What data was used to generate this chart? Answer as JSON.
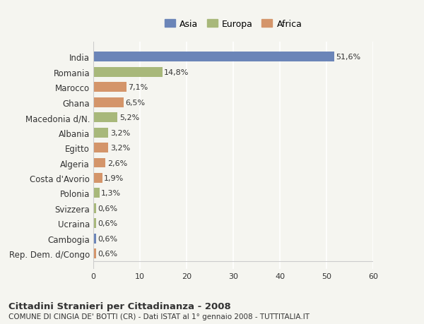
{
  "categories": [
    "Rep. Dem. d/Congo",
    "Cambogia",
    "Ucraina",
    "Svizzera",
    "Polonia",
    "Costa d'Avorio",
    "Algeria",
    "Egitto",
    "Albania",
    "Macedonia d/N.",
    "Ghana",
    "Marocco",
    "Romania",
    "India"
  ],
  "values": [
    0.6,
    0.6,
    0.6,
    0.6,
    1.3,
    1.9,
    2.6,
    3.2,
    3.2,
    5.2,
    6.5,
    7.1,
    14.8,
    51.6
  ],
  "labels": [
    "0,6%",
    "0,6%",
    "0,6%",
    "0,6%",
    "1,3%",
    "1,9%",
    "2,6%",
    "3,2%",
    "3,2%",
    "5,2%",
    "6,5%",
    "7,1%",
    "14,8%",
    "51,6%"
  ],
  "continents": [
    "Africa",
    "Asia",
    "Europa",
    "Europa",
    "Europa",
    "Africa",
    "Africa",
    "Africa",
    "Europa",
    "Europa",
    "Africa",
    "Africa",
    "Europa",
    "Asia"
  ],
  "colors": {
    "Asia": "#6b85b8",
    "Europa": "#a8b87a",
    "Africa": "#d4956a"
  },
  "legend_order": [
    "Asia",
    "Europa",
    "Africa"
  ],
  "xlim": [
    0,
    60
  ],
  "xticks": [
    0,
    10,
    20,
    30,
    40,
    50,
    60
  ],
  "title": "Cittadini Stranieri per Cittadinanza - 2008",
  "subtitle": "COMUNE DI CINGIA DE' BOTTI (CR) - Dati ISTAT al 1° gennaio 2008 - TUTTITALIA.IT",
  "bg_color": "#f5f5f0",
  "bar_height": 0.65,
  "grid_color": "#ffffff",
  "axis_color": "#cccccc",
  "text_color": "#333333"
}
